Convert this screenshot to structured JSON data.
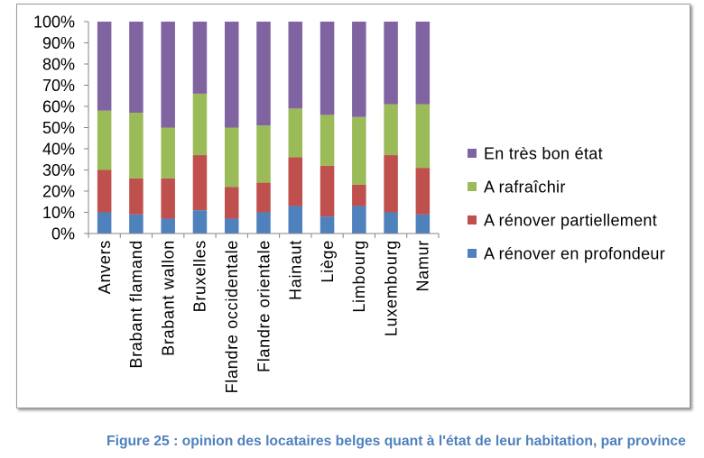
{
  "chart_data": {
    "type": "bar",
    "stacking": "percent",
    "categories": [
      "Anvers",
      "Brabant flamand",
      "Brabant wallon",
      "Bruxelles",
      "Flandre occidentale",
      "Flandre orientale",
      "Hainaut",
      "Liège",
      "Limbourg",
      "Luxembourg",
      "Namur"
    ],
    "series": [
      {
        "name": "A rénover en profondeur",
        "color": "#4F81BD",
        "values": [
          10,
          9,
          7,
          11,
          7,
          10,
          13,
          8,
          13,
          10,
          9
        ]
      },
      {
        "name": "A rénover partiellement",
        "color": "#C0504D",
        "values": [
          20,
          17,
          19,
          26,
          15,
          14,
          23,
          24,
          10,
          27,
          22
        ]
      },
      {
        "name": "A rafraîchir",
        "color": "#9BBB59",
        "values": [
          28,
          31,
          24,
          29,
          28,
          27,
          23,
          24,
          32,
          24,
          30
        ]
      },
      {
        "name": "En très bon état",
        "color": "#8064A2",
        "values": [
          42,
          43,
          50,
          34,
          50,
          49,
          41,
          44,
          45,
          39,
          39
        ]
      }
    ],
    "y_ticks": [
      "0%",
      "10%",
      "20%",
      "30%",
      "40%",
      "50%",
      "60%",
      "70%",
      "80%",
      "90%",
      "100%"
    ],
    "ylim": [
      0,
      100
    ],
    "grid": false,
    "legend_position": "right"
  },
  "caption": "Figure 25 : opinion des locataires belges quant à l'état de leur habitation, par province",
  "colors": {
    "caption": "#4F81BD",
    "axis": "#868686"
  }
}
